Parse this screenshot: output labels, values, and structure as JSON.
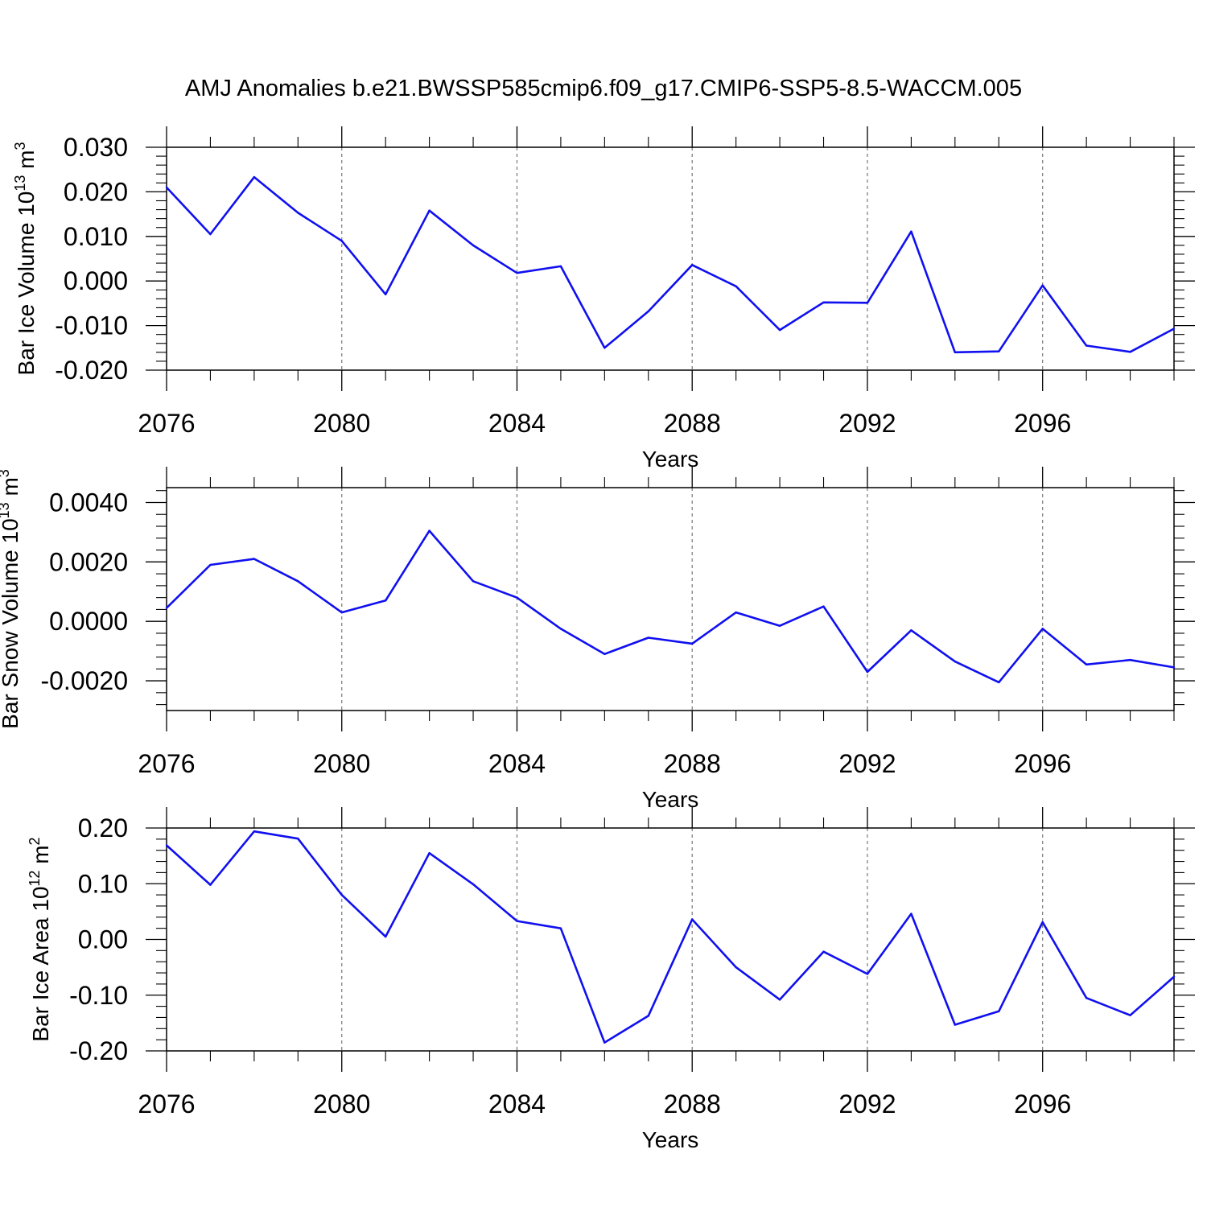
{
  "title": "AMJ Anomalies b.e21.BWSSP585cmip6.f09_g17.CMIP6-SSP5-8.5-WACCM.005",
  "colors": {
    "line": "#1010f0",
    "axes": "#000000",
    "grid": "#777777"
  },
  "chart_data": [
    {
      "type": "line",
      "ylabel": {
        "main": "Bar Ice Volume 10",
        "exp": "13",
        "unit": " m",
        "unit_exp": "3"
      },
      "xlabel": "Years",
      "xlim": [
        2076,
        2099
      ],
      "ylim": [
        -0.02,
        0.03
      ],
      "yticks": [
        -0.02,
        -0.01,
        0.0,
        0.01,
        0.02,
        0.03
      ],
      "ytick_labels": [
        "-0.020",
        "-0.010",
        "0.000",
        "0.010",
        "0.020",
        "0.030"
      ],
      "xticks": [
        2076,
        2080,
        2084,
        2088,
        2092,
        2096
      ],
      "xtick_labels": [
        "2076",
        "2080",
        "2084",
        "2088",
        "2092",
        "2096"
      ],
      "grid": "vertical dashed at labeled years",
      "x": [
        2076,
        2077,
        2078,
        2079,
        2080,
        2081,
        2082,
        2083,
        2084,
        2085,
        2086,
        2087,
        2088,
        2089,
        2090,
        2091,
        2092,
        2093,
        2094,
        2095,
        2096,
        2097,
        2098,
        2099
      ],
      "values": [
        0.021,
        0.0105,
        0.0233,
        0.0153,
        0.009,
        -0.003,
        0.0158,
        0.008,
        0.0018,
        0.0033,
        -0.015,
        -0.0068,
        0.0036,
        -0.0012,
        -0.011,
        -0.0048,
        -0.0049,
        0.0111,
        -0.016,
        -0.0158,
        -0.001,
        -0.0145,
        -0.0159,
        -0.0107
      ]
    },
    {
      "type": "line",
      "ylabel": {
        "main": "Bar Snow Volume 10",
        "exp": "13",
        "unit": " m",
        "unit_exp": "3"
      },
      "xlabel": "Years",
      "xlim": [
        2076,
        2099
      ],
      "ylim": [
        -0.003,
        0.0045
      ],
      "yticks": [
        -0.002,
        0.0,
        0.002,
        0.004
      ],
      "ytick_labels": [
        "-0.0020",
        "0.0000",
        "0.0020",
        "0.0040"
      ],
      "xticks": [
        2076,
        2080,
        2084,
        2088,
        2092,
        2096
      ],
      "xtick_labels": [
        "2076",
        "2080",
        "2084",
        "2088",
        "2092",
        "2096"
      ],
      "grid": "vertical dashed at labeled years",
      "x": [
        2076,
        2077,
        2078,
        2079,
        2080,
        2081,
        2082,
        2083,
        2084,
        2085,
        2086,
        2087,
        2088,
        2089,
        2090,
        2091,
        2092,
        2093,
        2094,
        2095,
        2096,
        2097,
        2098,
        2099
      ],
      "values": [
        0.00045,
        0.0019,
        0.0021,
        0.00135,
        0.0003,
        0.0007,
        0.00305,
        0.00135,
        0.0008,
        -0.00025,
        -0.0011,
        -0.00055,
        -0.00075,
        0.0003,
        -0.00015,
        0.0005,
        -0.0017,
        -0.0003,
        -0.00135,
        -0.00205,
        -0.00025,
        -0.00145,
        -0.0013,
        -0.00155
      ]
    },
    {
      "type": "line",
      "ylabel": {
        "main": "Bar Ice Area 10",
        "exp": "12",
        "unit": " m",
        "unit_exp": "2"
      },
      "xlabel": "Years",
      "xlim": [
        2076,
        2099
      ],
      "ylim": [
        -0.2,
        0.2
      ],
      "yticks": [
        -0.2,
        -0.1,
        0.0,
        0.1,
        0.2
      ],
      "ytick_labels": [
        "-0.20",
        "-0.10",
        "0.00",
        "0.10",
        "0.20"
      ],
      "xticks": [
        2076,
        2080,
        2084,
        2088,
        2092,
        2096
      ],
      "xtick_labels": [
        "2076",
        "2080",
        "2084",
        "2088",
        "2092",
        "2096"
      ],
      "grid": "vertical dashed at labeled years",
      "x": [
        2076,
        2077,
        2078,
        2079,
        2080,
        2081,
        2082,
        2083,
        2084,
        2085,
        2086,
        2087,
        2088,
        2089,
        2090,
        2091,
        2092,
        2093,
        2094,
        2095,
        2096,
        2097,
        2098,
        2099
      ],
      "values": [
        0.169,
        0.098,
        0.194,
        0.181,
        0.08,
        0.005,
        0.155,
        0.099,
        0.033,
        0.02,
        -0.185,
        -0.137,
        0.036,
        -0.05,
        -0.108,
        -0.022,
        -0.062,
        0.046,
        -0.153,
        -0.129,
        0.031,
        -0.105,
        -0.136,
        -0.067
      ]
    }
  ]
}
